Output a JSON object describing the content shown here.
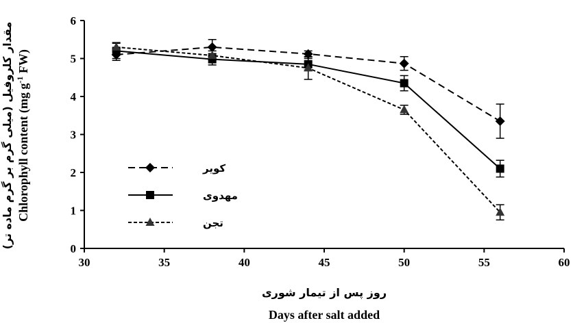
{
  "chart_data": {
    "type": "line",
    "xlabel_fa": "روز پس از تیمار شوری",
    "xlabel_en": "Days after salt added",
    "ylabel_fa": "مقدار کلروفیل (میلی گرم بر گرم ماده تر)",
    "ylabel_en": "Chlorophyll content (mg g",
    "ylabel_en_sup": "-1",
    "ylabel_en_end": " FW)",
    "xlim": [
      30,
      60
    ],
    "ylim": [
      0,
      6
    ],
    "x_ticks": [
      30,
      35,
      40,
      45,
      50,
      55,
      60
    ],
    "y_ticks": [
      0,
      1,
      2,
      3,
      4,
      5,
      6
    ],
    "grid": false,
    "legend_position": "left-middle",
    "x": [
      32,
      38,
      44,
      50,
      56
    ],
    "series": [
      {
        "name": "کویر",
        "values": [
          5.1,
          5.3,
          5.12,
          4.87,
          3.35
        ],
        "errors": [
          0.15,
          0.2,
          0.08,
          0.18,
          0.45
        ],
        "marker": "diamond",
        "dash": "10,6"
      },
      {
        "name": "مهدوی",
        "values": [
          5.2,
          4.98,
          4.85,
          4.35,
          2.1
        ],
        "errors": [
          0.2,
          0.15,
          0.15,
          0.2,
          0.22
        ],
        "marker": "square",
        "dash": ""
      },
      {
        "name": "تجن",
        "values": [
          5.3,
          5.08,
          4.75,
          3.65,
          0.95
        ],
        "errors": [
          0.12,
          0.12,
          0.3,
          0.12,
          0.2
        ],
        "marker": "triangle",
        "dash": "5,3"
      }
    ]
  }
}
